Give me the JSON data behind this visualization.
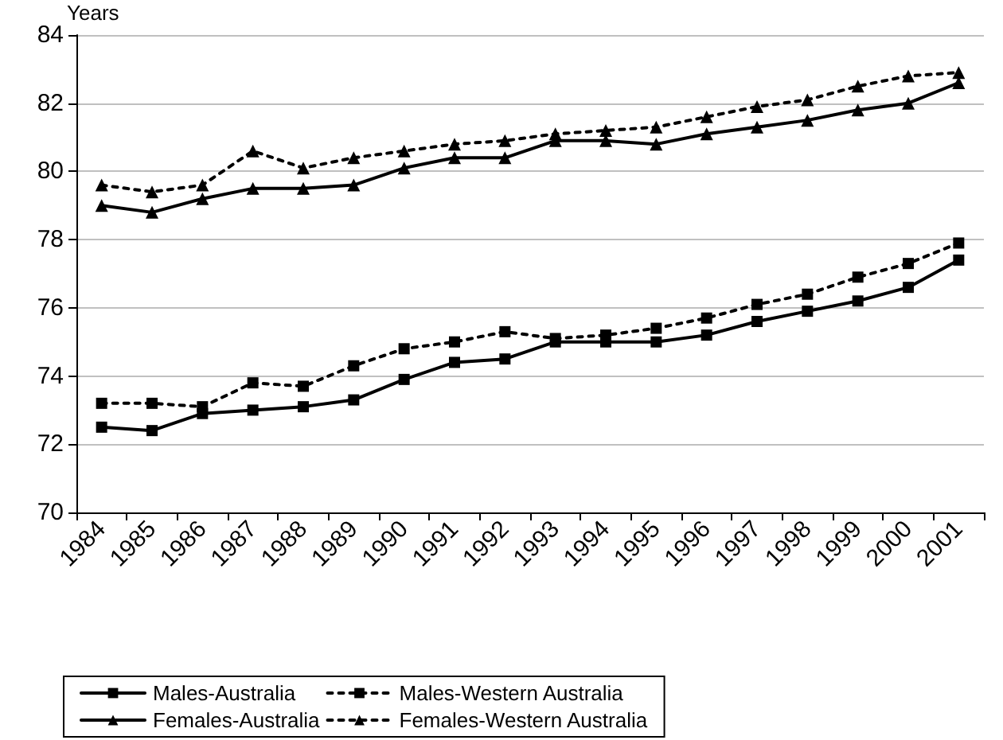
{
  "chart_data": {
    "type": "line",
    "ylabel": "Years",
    "categories": [
      "1984",
      "1985",
      "1986",
      "1987",
      "1988",
      "1989",
      "1990",
      "1991",
      "1992",
      "1993",
      "1994",
      "1995",
      "1996",
      "1997",
      "1998",
      "1999",
      "2000",
      "2001"
    ],
    "series": [
      {
        "name": "Males-Australia",
        "color": "#000000",
        "marker": "square",
        "line_style": "solid",
        "values": [
          72.5,
          72.4,
          72.9,
          73.0,
          73.1,
          73.3,
          73.9,
          74.4,
          74.5,
          75.0,
          75.0,
          75.0,
          75.2,
          75.6,
          75.9,
          76.2,
          76.6,
          77.4
        ]
      },
      {
        "name": "Males-Western Australia",
        "color": "#000000",
        "marker": "square",
        "line_style": "dotted",
        "values": [
          73.2,
          73.2,
          73.1,
          73.8,
          73.7,
          74.3,
          74.8,
          75.0,
          75.3,
          75.1,
          75.2,
          75.4,
          75.7,
          76.1,
          76.4,
          76.9,
          77.3,
          77.9
        ]
      },
      {
        "name": "Females-Australia",
        "color": "#000000",
        "marker": "triangle",
        "line_style": "solid",
        "values": [
          79.0,
          78.8,
          79.2,
          79.5,
          79.5,
          79.6,
          80.1,
          80.4,
          80.4,
          80.9,
          80.9,
          80.8,
          81.1,
          81.3,
          81.5,
          81.8,
          82.0,
          82.6
        ]
      },
      {
        "name": "Females-Western Australia",
        "color": "#000000",
        "marker": "triangle",
        "line_style": "dotted",
        "values": [
          79.6,
          79.4,
          79.6,
          80.6,
          80.1,
          80.4,
          80.6,
          80.8,
          80.9,
          81.1,
          81.2,
          81.3,
          81.6,
          81.9,
          82.1,
          82.5,
          82.8,
          82.9
        ]
      }
    ],
    "ylim": [
      70,
      84
    ],
    "yticks": [
      70,
      72,
      74,
      76,
      78,
      80,
      82,
      84
    ],
    "grid": "y",
    "legend": "bottom"
  }
}
